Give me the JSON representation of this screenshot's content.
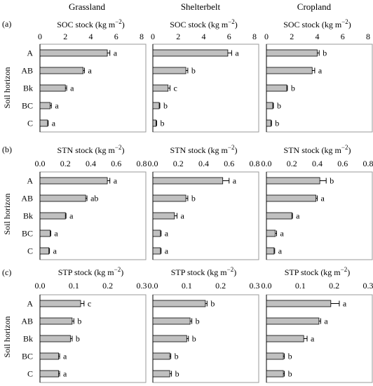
{
  "column_titles": [
    "Grassland",
    "Shelterbelt",
    "Cropland"
  ],
  "row_letters": [
    "(a)",
    "(b)",
    "(c)"
  ],
  "y_axis_label": "Soil  horizon",
  "colors": {
    "bar_fill": "#c0c0c0",
    "bar_stroke": "#000000",
    "frame": "#9a9a9a"
  },
  "chart_data": [
    {
      "type": "bar",
      "orientation": "horizontal",
      "title": "SOC stock (kg m−2)",
      "title_main": "SOC stock (kg  m",
      "title_sup": "−2",
      "title_end": ")",
      "xlim": [
        0,
        8
      ],
      "ticks": [
        0,
        2,
        4,
        6,
        8
      ],
      "tick_labels": [
        "0",
        "2",
        "4",
        "6",
        "8"
      ],
      "categories": [
        "A",
        "AB",
        "Bk",
        "BC",
        "C"
      ],
      "series": [
        {
          "values": [
            5.3,
            3.4,
            2.0,
            0.8,
            0.6
          ],
          "errors": [
            0.2,
            0.1,
            0.1,
            0.1,
            0.05
          ],
          "letters": [
            "a",
            "a",
            "a",
            "a",
            "a"
          ]
        },
        {
          "values": [
            5.9,
            2.6,
            1.2,
            0.5,
            0.25
          ],
          "errors": [
            0.3,
            0.15,
            0.15,
            0.05,
            0.05
          ],
          "letters": [
            "a",
            "b",
            "c",
            "b",
            "b"
          ]
        },
        {
          "values": [
            4.0,
            3.6,
            1.6,
            0.5,
            0.35
          ],
          "errors": [
            0.15,
            0.2,
            0.05,
            0.05,
            0.05
          ],
          "letters": [
            "b",
            "a",
            "b",
            "b",
            "b"
          ]
        }
      ]
    },
    {
      "type": "bar",
      "orientation": "horizontal",
      "title": "STN stock (kg m−2)",
      "title_main": "STN stock (kg  m",
      "title_sup": "−2",
      "title_end": ")",
      "xlim": [
        0,
        0.8
      ],
      "ticks": [
        0,
        0.2,
        0.4,
        0.6,
        0.8
      ],
      "tick_labels": [
        "0.0",
        "0.2",
        "0.4",
        "0.6",
        "0.8"
      ],
      "categories": [
        "A",
        "AB",
        "Bk",
        "BC",
        "C"
      ],
      "series": [
        {
          "values": [
            0.53,
            0.36,
            0.2,
            0.08,
            0.07
          ],
          "errors": [
            0.02,
            0.01,
            0.005,
            0.005,
            0.005
          ],
          "letters": [
            "a",
            "ab",
            "a",
            "a",
            "a"
          ]
        },
        {
          "values": [
            0.55,
            0.26,
            0.17,
            0.06,
            0.06
          ],
          "errors": [
            0.05,
            0.015,
            0.02,
            0.005,
            0.005
          ],
          "letters": [
            "a",
            "b",
            "a",
            "a",
            "a"
          ]
        },
        {
          "values": [
            0.42,
            0.39,
            0.2,
            0.07,
            0.06
          ],
          "errors": [
            0.05,
            0.01,
            0.005,
            0.01,
            0.005
          ],
          "letters": [
            "b",
            "a",
            "a",
            "a",
            "a"
          ]
        }
      ]
    },
    {
      "type": "bar",
      "orientation": "horizontal",
      "title": "STP stock (kg m−2)",
      "title_main": "STP stock (kg  m",
      "title_sup": "−2",
      "title_end": ")",
      "xlim": [
        0,
        0.3
      ],
      "ticks": [
        0,
        0.1,
        0.2,
        0.3
      ],
      "tick_labels": [
        "0.0",
        "0.1",
        "0.2",
        "0.3"
      ],
      "categories": [
        "A",
        "AB",
        "Bk",
        "BC",
        "C"
      ],
      "series": [
        {
          "values": [
            0.12,
            0.095,
            0.09,
            0.055,
            0.055
          ],
          "errors": [
            0.01,
            0.005,
            0.005,
            0.003,
            0.003
          ],
          "letters": [
            "c",
            "b",
            "b",
            "a",
            "a"
          ]
        },
        {
          "values": [
            0.155,
            0.11,
            0.1,
            0.05,
            0.05
          ],
          "errors": [
            0.005,
            0.005,
            0.005,
            0.003,
            0.005
          ],
          "letters": [
            "b",
            "b",
            "b",
            "b",
            "b"
          ]
        },
        {
          "values": [
            0.19,
            0.155,
            0.11,
            0.05,
            0.05
          ],
          "errors": [
            0.025,
            0.005,
            0.01,
            0.003,
            0.003
          ],
          "letters": [
            "a",
            "a",
            "a",
            "b",
            "b"
          ]
        }
      ]
    }
  ]
}
